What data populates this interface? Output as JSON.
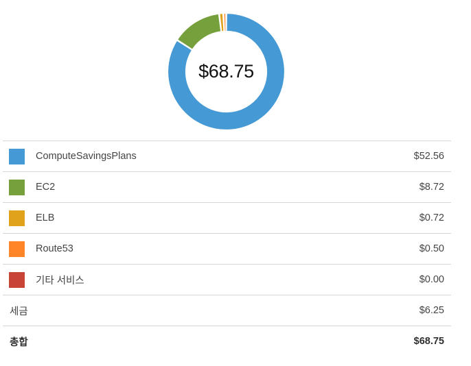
{
  "summary": {
    "total_display": "$68.75"
  },
  "chart_data": {
    "type": "pie",
    "donut": true,
    "categories": [
      "ComputeSavingsPlans",
      "EC2",
      "ELB",
      "Route53",
      "기타 서비스"
    ],
    "values": [
      52.56,
      8.72,
      0.72,
      0.5,
      0.0
    ],
    "colors": [
      "#4599d5",
      "#76a03b",
      "#e0a21b",
      "#ff8528",
      "#c84436"
    ],
    "center_label": "$68.75"
  },
  "services": [
    {
      "label": "ComputeSavingsPlans",
      "amount": "$52.56",
      "color": "#4599d5"
    },
    {
      "label": "EC2",
      "amount": "$8.72",
      "color": "#76a03b"
    },
    {
      "label": "ELB",
      "amount": "$0.72",
      "color": "#e0a21b"
    },
    {
      "label": "Route53",
      "amount": "$0.50",
      "color": "#ff8528"
    },
    {
      "label": "기타 서비스",
      "amount": "$0.00",
      "color": "#c84436"
    }
  ],
  "tax": {
    "label": "세금",
    "amount": "$6.25"
  },
  "total": {
    "label": "총합",
    "amount": "$68.75"
  }
}
